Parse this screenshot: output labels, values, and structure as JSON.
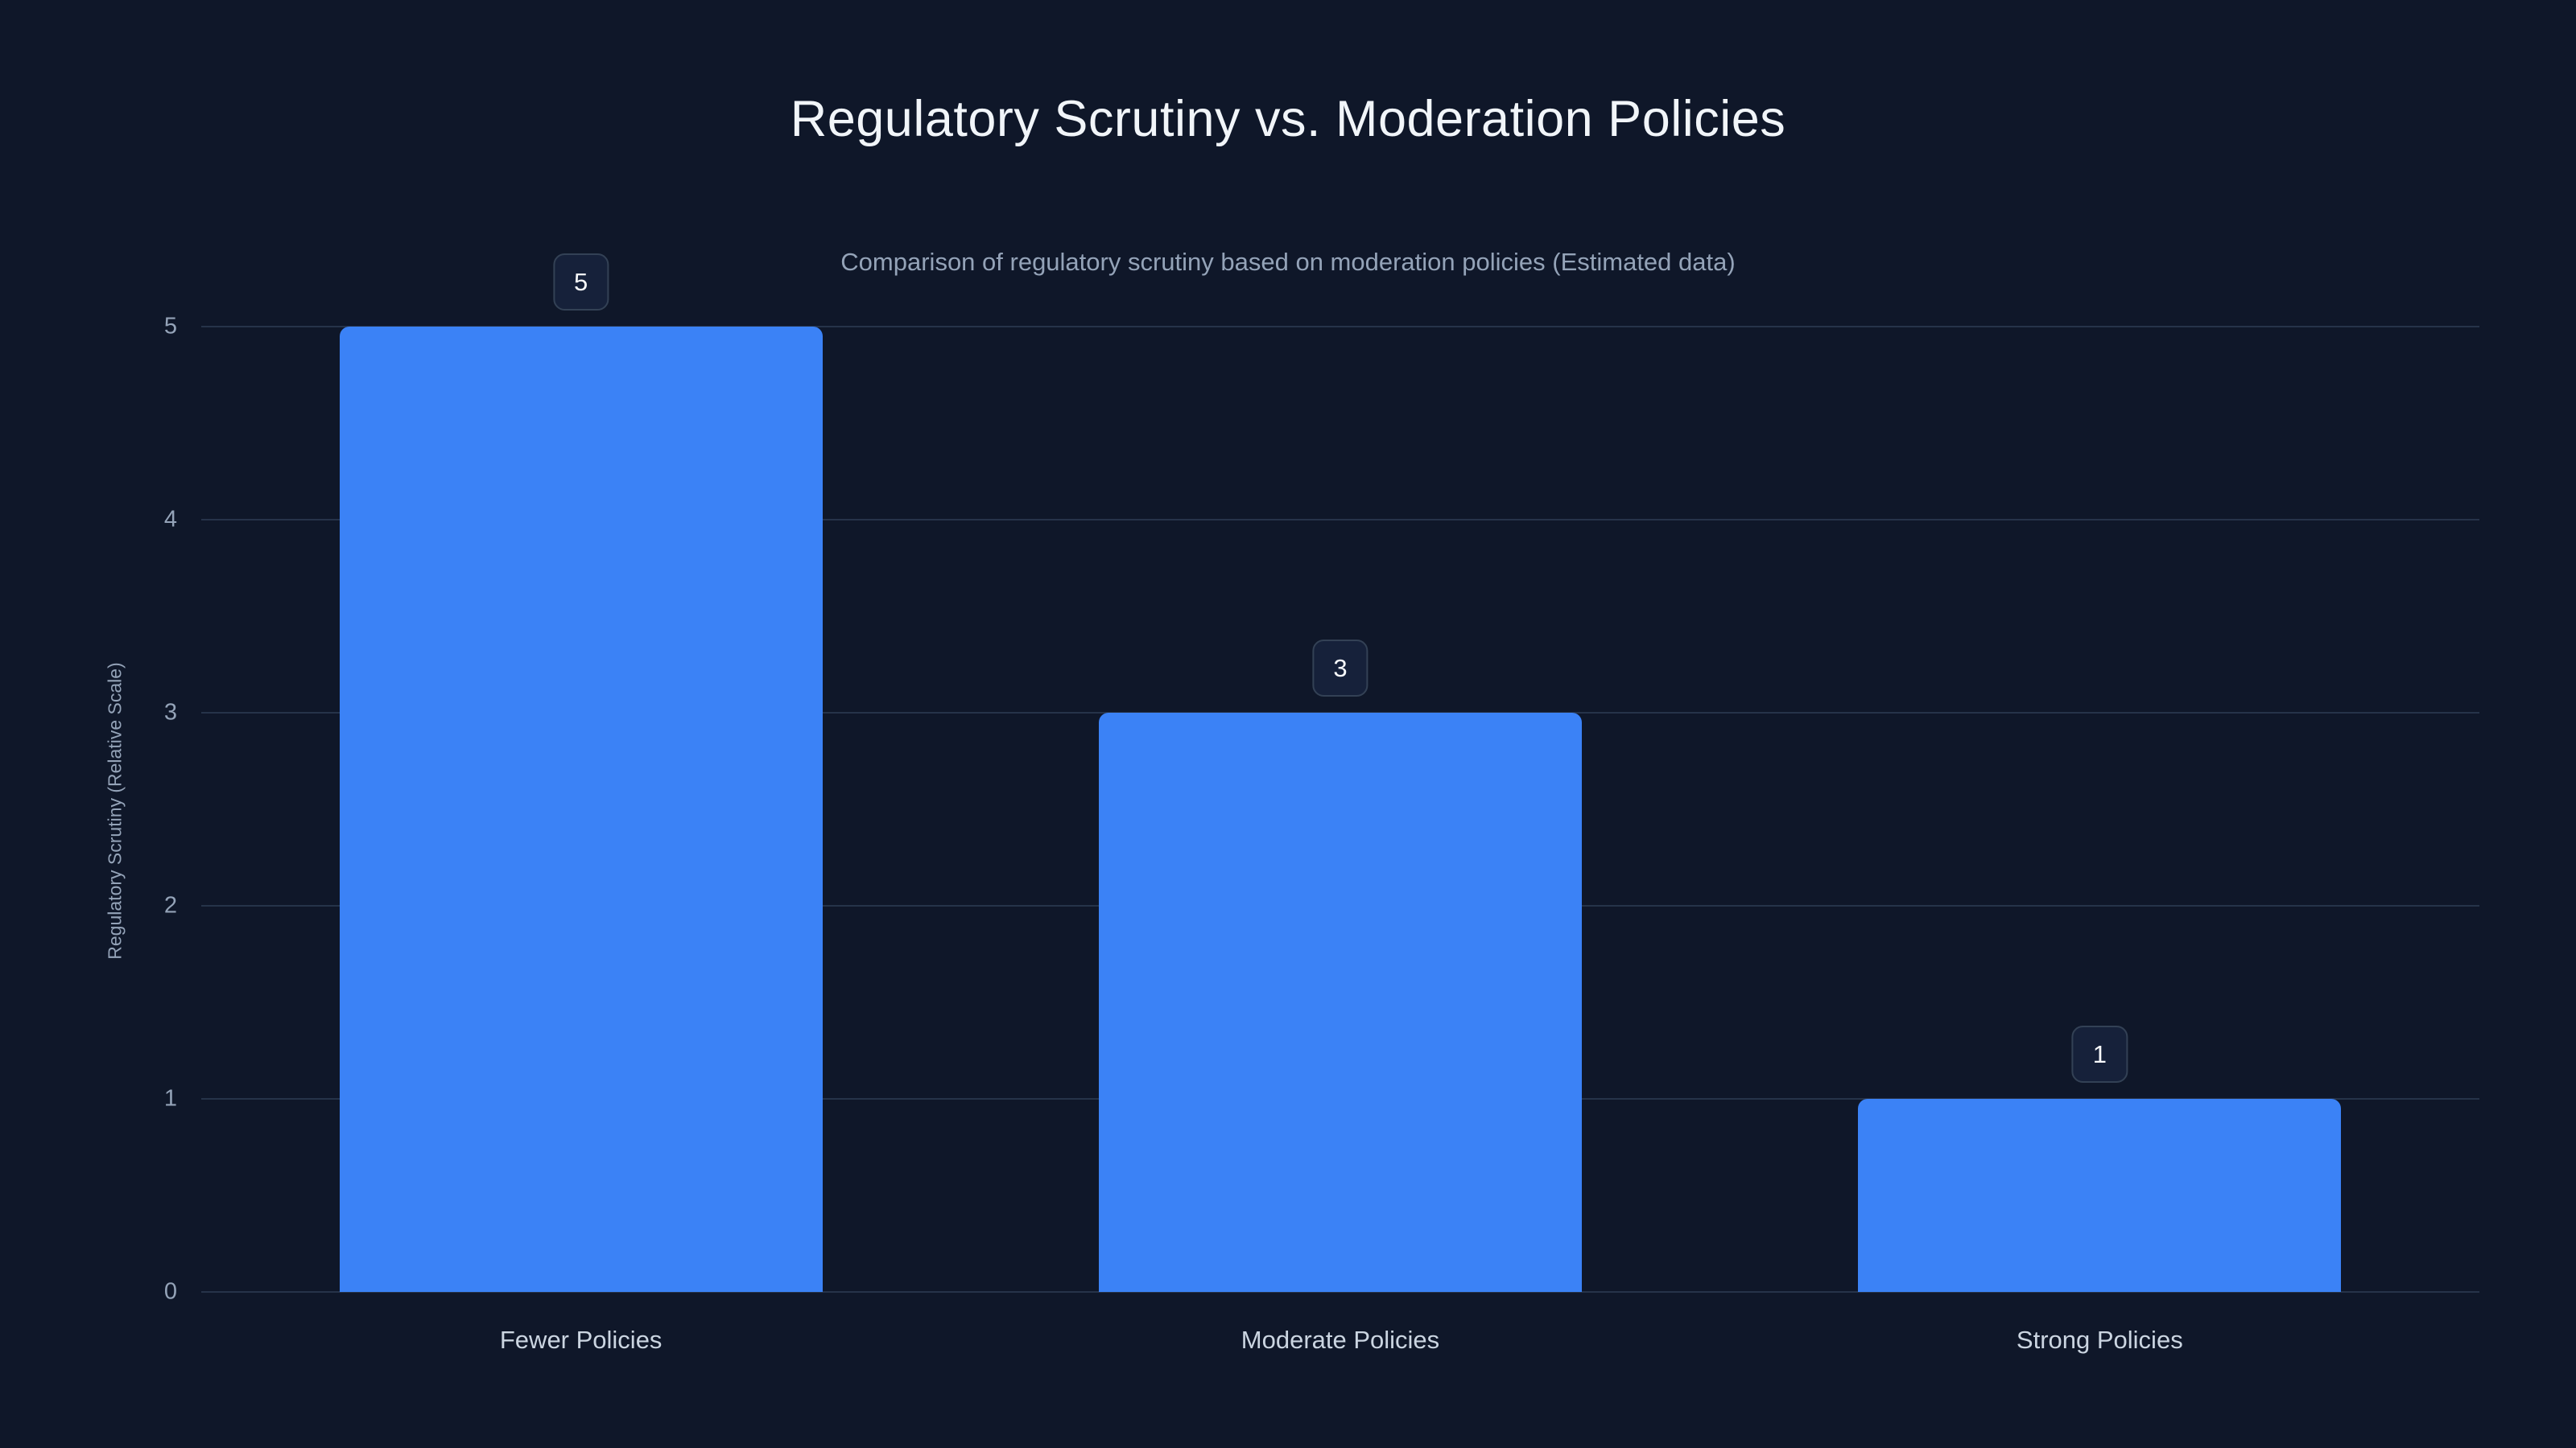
{
  "chart_data": {
    "type": "bar",
    "title": "Regulatory Scrutiny vs. Moderation Policies",
    "subtitle": "Comparison of regulatory scrutiny based on moderation policies (Estimated data)",
    "categories": [
      "Fewer Policies",
      "Moderate Policies",
      "Strong Policies"
    ],
    "values": [
      5,
      3,
      1
    ],
    "value_labels": [
      5,
      3,
      1
    ],
    "xlabel": "",
    "ylabel": "Regulatory Scrutiny (Relative Scale)",
    "ylim": [
      0,
      5
    ],
    "yticks": [
      0,
      1,
      2,
      3,
      4,
      5
    ],
    "grid": true,
    "legend": "none",
    "colors": {
      "background": "#0f1729",
      "bar": "#3b82f6",
      "grid": "#263349",
      "title": "#f1f5f9",
      "subtitle": "#94a3b8",
      "tick": "#94a3b8",
      "category": "#cbd5e1",
      "badge_bg": "#16213a",
      "badge_border": "#334155",
      "badge_text": "#f8fafc"
    }
  }
}
